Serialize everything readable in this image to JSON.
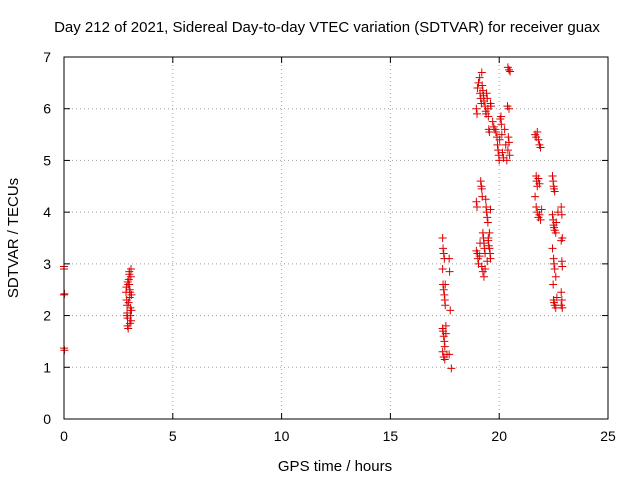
{
  "chart_data": {
    "type": "scatter",
    "title": "Day 212 of 2021, Sidereal Day-to-day VTEC variation (SDTVAR) for receiver guax",
    "xlabel": "GPS time / hours",
    "ylabel": "SDTVAR / TECUs",
    "xlim": [
      0,
      25
    ],
    "ylim": [
      0,
      7
    ],
    "xticks": [
      0,
      5,
      10,
      15,
      20,
      25
    ],
    "yticks": [
      0,
      1,
      2,
      3,
      4,
      5,
      6,
      7
    ],
    "xtick_labels": [
      "0",
      "5",
      "10",
      "15",
      "20",
      "25"
    ],
    "ytick_labels": [
      "0",
      "1",
      "2",
      "3",
      "4",
      "5",
      "6",
      "7"
    ],
    "grid": true,
    "marker": "plus",
    "color": "#dd0000",
    "series": [
      {
        "name": "SDTVAR",
        "points": [
          [
            0.0,
            2.95
          ],
          [
            0.0,
            2.9
          ],
          [
            0.02,
            2.42
          ],
          [
            0.0,
            2.4
          ],
          [
            0.0,
            1.37
          ],
          [
            0.02,
            1.33
          ],
          [
            2.85,
            2.45
          ],
          [
            2.88,
            2.3
          ],
          [
            2.9,
            2.2
          ],
          [
            2.9,
            2.05
          ],
          [
            2.92,
            1.95
          ],
          [
            2.92,
            1.8
          ],
          [
            2.95,
            1.75
          ],
          [
            2.95,
            2.6
          ],
          [
            2.98,
            2.7
          ],
          [
            3.0,
            2.85
          ],
          [
            3.0,
            2.8
          ],
          [
            3.02,
            2.5
          ],
          [
            3.02,
            2.35
          ],
          [
            3.05,
            2.15
          ],
          [
            3.05,
            2.0
          ],
          [
            3.08,
            1.9
          ],
          [
            3.08,
            2.9
          ],
          [
            3.1,
            2.4
          ],
          [
            3.1,
            2.1
          ],
          [
            2.87,
            2.55
          ],
          [
            2.93,
            2.65
          ],
          [
            2.97,
            2.25
          ],
          [
            3.03,
            1.85
          ],
          [
            3.07,
            2.75
          ],
          [
            2.89,
            2.0
          ],
          [
            3.0,
            2.6
          ],
          [
            3.04,
            2.45
          ],
          [
            17.4,
            3.5
          ],
          [
            17.42,
            3.3
          ],
          [
            17.45,
            3.2
          ],
          [
            17.48,
            3.1
          ],
          [
            17.4,
            2.9
          ],
          [
            17.42,
            2.6
          ],
          [
            17.45,
            2.5
          ],
          [
            17.48,
            2.4
          ],
          [
            17.5,
            2.3
          ],
          [
            17.52,
            2.2
          ],
          [
            17.4,
            1.75
          ],
          [
            17.42,
            1.7
          ],
          [
            17.45,
            1.6
          ],
          [
            17.48,
            1.5
          ],
          [
            17.5,
            1.4
          ],
          [
            17.4,
            1.3
          ],
          [
            17.45,
            1.2
          ],
          [
            17.5,
            1.15
          ],
          [
            17.55,
            1.65
          ],
          [
            17.6,
            1.25
          ],
          [
            17.7,
            1.25
          ],
          [
            17.8,
            0.98
          ],
          [
            17.75,
            2.1
          ],
          [
            17.7,
            3.1
          ],
          [
            17.72,
            2.85
          ],
          [
            17.52,
            2.6
          ],
          [
            17.55,
            1.8
          ],
          [
            18.95,
            6.0
          ],
          [
            18.98,
            5.9
          ],
          [
            19.0,
            6.4
          ],
          [
            19.05,
            6.5
          ],
          [
            19.1,
            6.6
          ],
          [
            19.12,
            6.3
          ],
          [
            19.15,
            6.2
          ],
          [
            19.18,
            6.1
          ],
          [
            19.2,
            6.7
          ],
          [
            19.22,
            6.45
          ],
          [
            19.25,
            6.35
          ],
          [
            19.28,
            6.25
          ],
          [
            19.3,
            6.15
          ],
          [
            19.35,
            6.05
          ],
          [
            19.38,
            5.95
          ],
          [
            19.4,
            5.9
          ],
          [
            19.42,
            6.3
          ],
          [
            19.45,
            6.2
          ],
          [
            19.48,
            6.0
          ],
          [
            19.5,
            5.85
          ],
          [
            19.52,
            5.6
          ],
          [
            19.55,
            5.55
          ],
          [
            19.6,
            6.1
          ],
          [
            19.62,
            6.05
          ],
          [
            19.7,
            5.75
          ],
          [
            19.75,
            5.65
          ],
          [
            19.8,
            5.6
          ],
          [
            19.85,
            5.55
          ],
          [
            19.9,
            5.45
          ],
          [
            19.92,
            5.3
          ],
          [
            19.95,
            5.2
          ],
          [
            19.98,
            5.1
          ],
          [
            20.0,
            5.0
          ],
          [
            20.02,
            5.4
          ],
          [
            20.05,
            5.8
          ],
          [
            20.08,
            5.85
          ],
          [
            20.1,
            5.7
          ],
          [
            20.12,
            5.5
          ],
          [
            20.15,
            5.15
          ],
          [
            20.2,
            5.05
          ],
          [
            20.25,
            5.6
          ],
          [
            20.3,
            5.3
          ],
          [
            20.35,
            5.0
          ],
          [
            20.4,
            5.2
          ],
          [
            20.42,
            5.45
          ],
          [
            20.45,
            5.35
          ],
          [
            20.48,
            5.1
          ],
          [
            20.38,
            6.05
          ],
          [
            20.45,
            6.0
          ],
          [
            20.4,
            6.8
          ],
          [
            20.45,
            6.75
          ],
          [
            20.5,
            6.72
          ],
          [
            18.95,
            4.2
          ],
          [
            18.98,
            4.1
          ],
          [
            19.0,
            3.2
          ],
          [
            19.02,
            3.1
          ],
          [
            19.05,
            3.0
          ],
          [
            18.95,
            3.25
          ],
          [
            19.1,
            3.15
          ],
          [
            19.15,
            4.6
          ],
          [
            19.18,
            4.5
          ],
          [
            19.2,
            4.45
          ],
          [
            19.22,
            4.3
          ],
          [
            19.25,
            3.6
          ],
          [
            19.28,
            3.5
          ],
          [
            19.3,
            3.4
          ],
          [
            19.32,
            3.3
          ],
          [
            19.35,
            3.2
          ],
          [
            19.38,
            4.25
          ],
          [
            19.4,
            4.1
          ],
          [
            19.42,
            4.0
          ],
          [
            19.45,
            3.9
          ],
          [
            19.48,
            3.8
          ],
          [
            19.5,
            3.45
          ],
          [
            19.52,
            3.35
          ],
          [
            19.55,
            3.3
          ],
          [
            19.58,
            3.2
          ],
          [
            19.6,
            3.1
          ],
          [
            19.2,
            2.95
          ],
          [
            19.25,
            2.85
          ],
          [
            19.3,
            2.75
          ],
          [
            19.35,
            2.9
          ],
          [
            19.45,
            3.05
          ],
          [
            19.5,
            3.5
          ],
          [
            19.55,
            3.6
          ],
          [
            19.6,
            4.05
          ],
          [
            19.12,
            3.4
          ],
          [
            21.65,
            5.5
          ],
          [
            21.7,
            5.45
          ],
          [
            21.75,
            5.55
          ],
          [
            21.8,
            5.4
          ],
          [
            21.85,
            5.3
          ],
          [
            21.9,
            5.25
          ],
          [
            21.7,
            4.7
          ],
          [
            21.72,
            4.6
          ],
          [
            21.75,
            4.5
          ],
          [
            21.8,
            4.65
          ],
          [
            21.85,
            4.55
          ],
          [
            21.65,
            4.3
          ],
          [
            21.7,
            4.1
          ],
          [
            21.75,
            4.0
          ],
          [
            21.8,
            3.9
          ],
          [
            21.85,
            3.95
          ],
          [
            21.9,
            3.85
          ],
          [
            21.95,
            4.05
          ],
          [
            22.45,
            4.7
          ],
          [
            22.48,
            4.6
          ],
          [
            22.5,
            4.5
          ],
          [
            22.52,
            4.45
          ],
          [
            22.55,
            4.4
          ],
          [
            22.45,
            3.95
          ],
          [
            22.48,
            3.85
          ],
          [
            22.5,
            3.75
          ],
          [
            22.52,
            3.7
          ],
          [
            22.55,
            3.65
          ],
          [
            22.6,
            3.6
          ],
          [
            22.45,
            3.3
          ],
          [
            22.5,
            3.1
          ],
          [
            22.52,
            3.0
          ],
          [
            22.55,
            2.9
          ],
          [
            22.6,
            2.75
          ],
          [
            22.5,
            2.3
          ],
          [
            22.52,
            2.25
          ],
          [
            22.55,
            2.2
          ],
          [
            22.6,
            2.15
          ],
          [
            22.65,
            2.35
          ],
          [
            22.48,
            2.6
          ],
          [
            22.62,
            3.8
          ],
          [
            22.7,
            4.0
          ],
          [
            22.85,
            4.1
          ],
          [
            22.88,
            3.95
          ],
          [
            22.9,
            3.5
          ],
          [
            22.85,
            3.45
          ],
          [
            22.88,
            3.05
          ],
          [
            22.9,
            2.95
          ],
          [
            22.85,
            2.45
          ],
          [
            22.88,
            2.3
          ],
          [
            22.9,
            2.15
          ],
          [
            22.85,
            2.2
          ]
        ]
      }
    ]
  }
}
